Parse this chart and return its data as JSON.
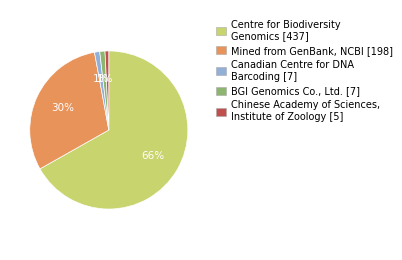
{
  "slices": [
    437,
    198,
    7,
    7,
    5
  ],
  "pie_colors": [
    "#c8d46e",
    "#e8935a",
    "#92afd7",
    "#8db570",
    "#c0504d"
  ],
  "legend_colors": [
    "#c8d46e",
    "#e8935a",
    "#92afd7",
    "#8db570",
    "#c0504d"
  ],
  "labels": [
    "Centre for Biodiversity\nGenomics [437]",
    "Mined from GenBank, NCBI [198]",
    "Canadian Centre for DNA\nBarcoding [7]",
    "BGI Genomics Co., Ltd. [7]",
    "Chinese Academy of Sciences,\nInstitute of Zoology [5]"
  ],
  "autopct_labels": [
    "66%",
    "30%",
    "1%",
    "1%",
    ""
  ],
  "background_color": "#ffffff",
  "legend_fontsize": 7.0,
  "text_color": "white",
  "startangle": 90
}
